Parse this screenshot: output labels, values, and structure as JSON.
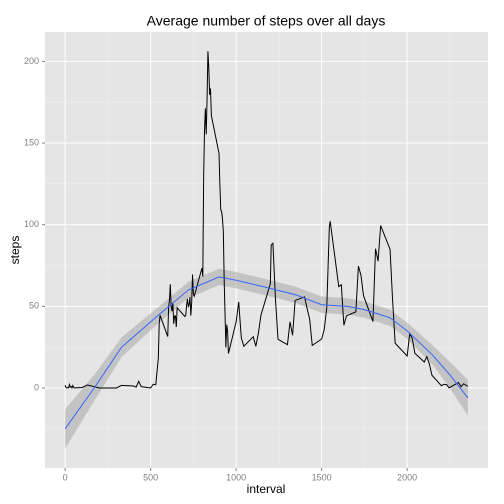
{
  "chart_data": {
    "type": "line",
    "title": "Average number of steps over all days",
    "xlabel": "interval",
    "ylabel": "steps",
    "x": [
      0,
      5,
      10,
      15,
      20,
      25,
      30,
      35,
      40,
      45,
      50,
      55,
      100,
      130,
      200,
      230,
      300,
      330,
      400,
      415,
      430,
      445,
      500,
      515,
      530,
      545,
      550,
      555,
      600,
      605,
      610,
      615,
      620,
      625,
      630,
      635,
      640,
      645,
      650,
      655,
      700,
      705,
      710,
      715,
      720,
      725,
      730,
      735,
      740,
      745,
      750,
      755,
      800,
      805,
      810,
      815,
      820,
      825,
      830,
      835,
      840,
      845,
      850,
      855,
      900,
      905,
      910,
      915,
      920,
      925,
      930,
      935,
      940,
      945,
      950,
      955,
      1000,
      1015,
      1030,
      1045,
      1100,
      1115,
      1130,
      1145,
      1200,
      1205,
      1215,
      1230,
      1245,
      1300,
      1315,
      1330,
      1345,
      1400,
      1415,
      1430,
      1445,
      1500,
      1515,
      1530,
      1545,
      1550,
      1600,
      1615,
      1630,
      1645,
      1700,
      1715,
      1730,
      1745,
      1800,
      1815,
      1830,
      1845,
      1900,
      1915,
      1930,
      1945,
      2000,
      2015,
      2030,
      2045,
      2100,
      2115,
      2130,
      2145,
      2200,
      2215,
      2230,
      2245,
      2300,
      2315,
      2330,
      2345,
      2355
    ],
    "values": [
      1.7,
      0.3,
      0.1,
      0.2,
      0.1,
      2.1,
      0.5,
      0.9,
      0,
      1.5,
      0.3,
      0.1,
      0.3,
      1.8,
      0,
      0,
      0,
      1.6,
      1.2,
      0.5,
      4.1,
      0.8,
      0,
      2.2,
      2.1,
      18.3,
      39.5,
      44.5,
      31.5,
      49.3,
      53.8,
      63.5,
      50,
      47.1,
      52.2,
      39.3,
      44,
      44.2,
      37.4,
      49.1,
      43.8,
      44.4,
      50.5,
      54.5,
      49.9,
      50.9,
      55.7,
      44.3,
      52.3,
      69.5,
      57.8,
      56.2,
      73.4,
      68.2,
      129.4,
      157.5,
      171.2,
      155.4,
      177.3,
      206.2,
      195.9,
      179.6,
      183.4,
      167,
      143.5,
      124,
      109.1,
      108.1,
      103.7,
      95.9,
      66.2,
      45.2,
      24.8,
      38.8,
      35,
      21.1,
      40.6,
      52.7,
      30.8,
      25.5,
      31.4,
      25.5,
      33.5,
      44.6,
      63.9,
      87.6,
      88.6,
      54.2,
      29.8,
      26.5,
      40.5,
      32.3,
      53.6,
      55.8,
      48.7,
      42.1,
      26.1,
      30,
      35.7,
      49.2,
      98.7,
      102.1,
      62.1,
      63.2,
      38.4,
      44.2,
      46.6,
      74.7,
      68.9,
      56.5,
      40.7,
      85.3,
      77.7,
      99.5,
      84.9,
      53.4,
      27.4,
      25.7,
      19.6,
      33.3,
      30.2,
      21.3,
      15.9,
      19.2,
      14.7,
      7.8,
      1.4,
      2.3,
      2.1,
      0.1,
      3.3,
      0.8,
      2.6,
      1.6,
      1.1
    ],
    "color": "#000000",
    "smooth": {
      "x": [
        0,
        170,
        330,
        550,
        720,
        900,
        1000,
        1200,
        1350,
        1500,
        1650,
        1750,
        1900,
        2000,
        2150,
        2250,
        2355
      ],
      "values": [
        -25,
        0,
        25,
        45,
        60,
        68,
        66,
        61,
        57,
        51,
        50,
        48,
        43,
        35,
        20,
        8,
        -6
      ],
      "lower": [
        -37,
        -8,
        19,
        40,
        55,
        63,
        61,
        56,
        52,
        46,
        45,
        43,
        38,
        30,
        14,
        0,
        -17
      ],
      "upper": [
        -13,
        8,
        31,
        50,
        65,
        73,
        71,
        66,
        62,
        56,
        55,
        53,
        48,
        40,
        26,
        16,
        5
      ],
      "color": "#3366ff",
      "band_color": "#999999"
    },
    "xlim": [
      -117.75,
      2472.75
    ],
    "ylim": [
      -49,
      218
    ],
    "xticks": [
      0,
      500,
      1000,
      1500,
      2000
    ],
    "yticks": [
      0,
      50,
      100,
      150,
      200
    ],
    "xminor": [
      250,
      750,
      1250,
      1750,
      2250
    ],
    "yminor": [
      -25,
      25,
      75,
      125,
      175
    ],
    "grid": true
  }
}
